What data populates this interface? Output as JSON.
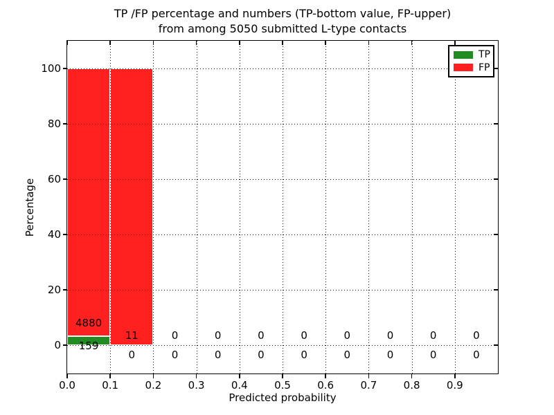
{
  "chart_data": {
    "type": "bar",
    "stacked": true,
    "title_line1": "TP /FP percentage and numbers (TP-bottom value, FP-upper)",
    "title_line2": "from among 5050 submitted L-type contacts",
    "xlabel": "Predicted probability",
    "ylabel": "Percentage",
    "total_submitted": 5050,
    "xlim": [
      0.0,
      1.0
    ],
    "ylim": [
      -10.25,
      110
    ],
    "x_ticks": [
      0.0,
      0.1,
      0.2,
      0.3,
      0.4,
      0.5,
      0.6,
      0.7,
      0.8,
      0.9
    ],
    "x_tick_labels": [
      "0.0",
      "0.1",
      "0.2",
      "0.3",
      "0.4",
      "0.5",
      "0.6",
      "0.7",
      "0.8",
      "0.9"
    ],
    "y_ticks": [
      0,
      20,
      40,
      60,
      80,
      100
    ],
    "y_tick_labels": [
      "0",
      "20",
      "40",
      "60",
      "80",
      "100"
    ],
    "grid": {
      "style": "dotted",
      "color": "#000000",
      "x_gridlines": [
        0.1,
        0.2,
        0.3,
        0.4,
        0.5,
        0.6,
        0.7,
        0.8,
        0.9
      ],
      "y_gridlines": [
        0,
        20,
        40,
        60,
        80,
        100
      ]
    },
    "bin_width": 0.1,
    "bin_starts": [
      0.0,
      0.1,
      0.2,
      0.3,
      0.4,
      0.5,
      0.6,
      0.7,
      0.8,
      0.9
    ],
    "series": [
      {
        "name": "TP",
        "color": "#228B22",
        "percent": [
          3.16,
          0,
          0,
          0,
          0,
          0,
          0,
          0,
          0,
          0
        ],
        "counts": [
          159,
          0,
          0,
          0,
          0,
          0,
          0,
          0,
          0,
          0
        ]
      },
      {
        "name": "FP",
        "color": "#FF2020",
        "percent": [
          96.84,
          100,
          0,
          0,
          0,
          0,
          0,
          0,
          0,
          0
        ],
        "counts": [
          4880,
          11,
          0,
          0,
          0,
          0,
          0,
          0,
          0,
          0
        ]
      }
    ],
    "legend": {
      "position": "upper right",
      "entries": [
        {
          "label": "TP",
          "color": "#228B22"
        },
        {
          "label": "FP",
          "color": "#FF2020"
        }
      ]
    }
  }
}
